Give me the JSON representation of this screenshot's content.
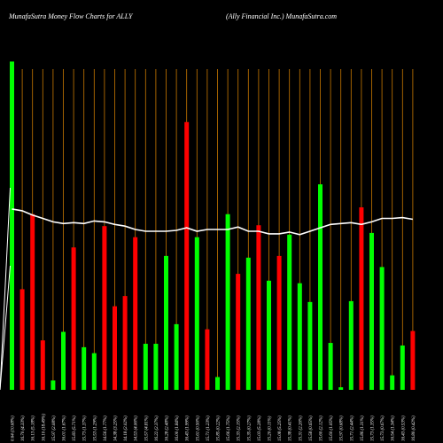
{
  "header": {
    "left": "MunafaSutra  Money Flow  Charts for ALLY",
    "right": "(Ally Financial Inc.) MunafaSutra.com"
  },
  "colors": {
    "background": "#000000",
    "inflow": "#00ff00",
    "outflow": "#ff0000",
    "grid": "#c87800",
    "price_line": "#ffffff"
  },
  "chart_data": {
    "type": "bar",
    "series": [
      {
        "kind": "bar",
        "values": [
          385,
          118,
          206,
          58,
          11,
          68,
          167,
          50,
          43,
          192,
          98,
          110,
          179,
          54,
          54,
          157,
          77,
          314,
          179,
          71,
          15,
          206,
          136,
          155,
          193,
          128,
          157,
          182,
          125,
          103,
          241,
          55,
          3,
          104,
          214,
          184,
          144,
          17,
          52,
          69
        ],
        "direction": [
          "in",
          "out",
          "out",
          "out",
          "in",
          "in",
          "out",
          "in",
          "in",
          "out",
          "out",
          "out",
          "out",
          "in",
          "in",
          "in",
          "in",
          "out",
          "in",
          "out",
          "in",
          "in",
          "out",
          "in",
          "out",
          "in",
          "out",
          "in",
          "in",
          "in",
          "in",
          "in",
          "in",
          "in",
          "out",
          "in",
          "in",
          "in",
          "in",
          "out"
        ]
      },
      {
        "kind": "line",
        "values": [
          212,
          210,
          205,
          201,
          197,
          195,
          196,
          195,
          198,
          197,
          194,
          192,
          188,
          186,
          186,
          186,
          187,
          190,
          186,
          188,
          188,
          188,
          191,
          186,
          186,
          183,
          183,
          185,
          182,
          186,
          190,
          194,
          195,
          196,
          194,
          197,
          201,
          201,
          202,
          200
        ]
      }
    ],
    "x_labels": [
      "0.64 (10.68%)",
      "16.70 (4.33%)",
      "16.13 (5.18%)",
      "16.10 (18.49%)",
      "15.97 (2.08%)",
      "16.01 (1.67%)",
      "15.83 (5.71%)",
      "15.73 (1.37%)",
      "15.53 (1.29%)",
      "14.56 (1.77%)",
      "14.38 (3.25%)",
      "14.18 (2.02%)",
      "14.53 (4.06%)",
      "15.57 (4.81%)",
      "16.22 (2.37%)",
      "16.28 (2.48%)",
      "16.00 (1.84%)",
      "16.43 (1.99%)",
      "15.61 (0.56%)",
      "15.71 (1.23%)",
      "15.85 (0.22%)",
      "15.66 (1.75%)",
      "15.33 (2.15%)",
      "15.35 (0.27%)",
      "15.03 (5.28%)",
      "15.20 (0.11%)",
      "15.08 (5.25%)",
      "15.38 (0.41%)",
      "15.31 (2.26%)",
      "15.58 (0.65%)",
      "15.60 (2.12%)",
      "15.60 (1.05%)",
      "15.97 (0.68%)",
      "15.71 (2.44%)",
      "15.86 (1.31%)",
      "15.73 (1.35%)",
      "15.73 (0.67%)",
      "16.54 (1.34%)",
      "16.43 (0.53%)",
      "16.80 (0.42%)"
    ],
    "ylim": [
      0,
      400
    ]
  }
}
